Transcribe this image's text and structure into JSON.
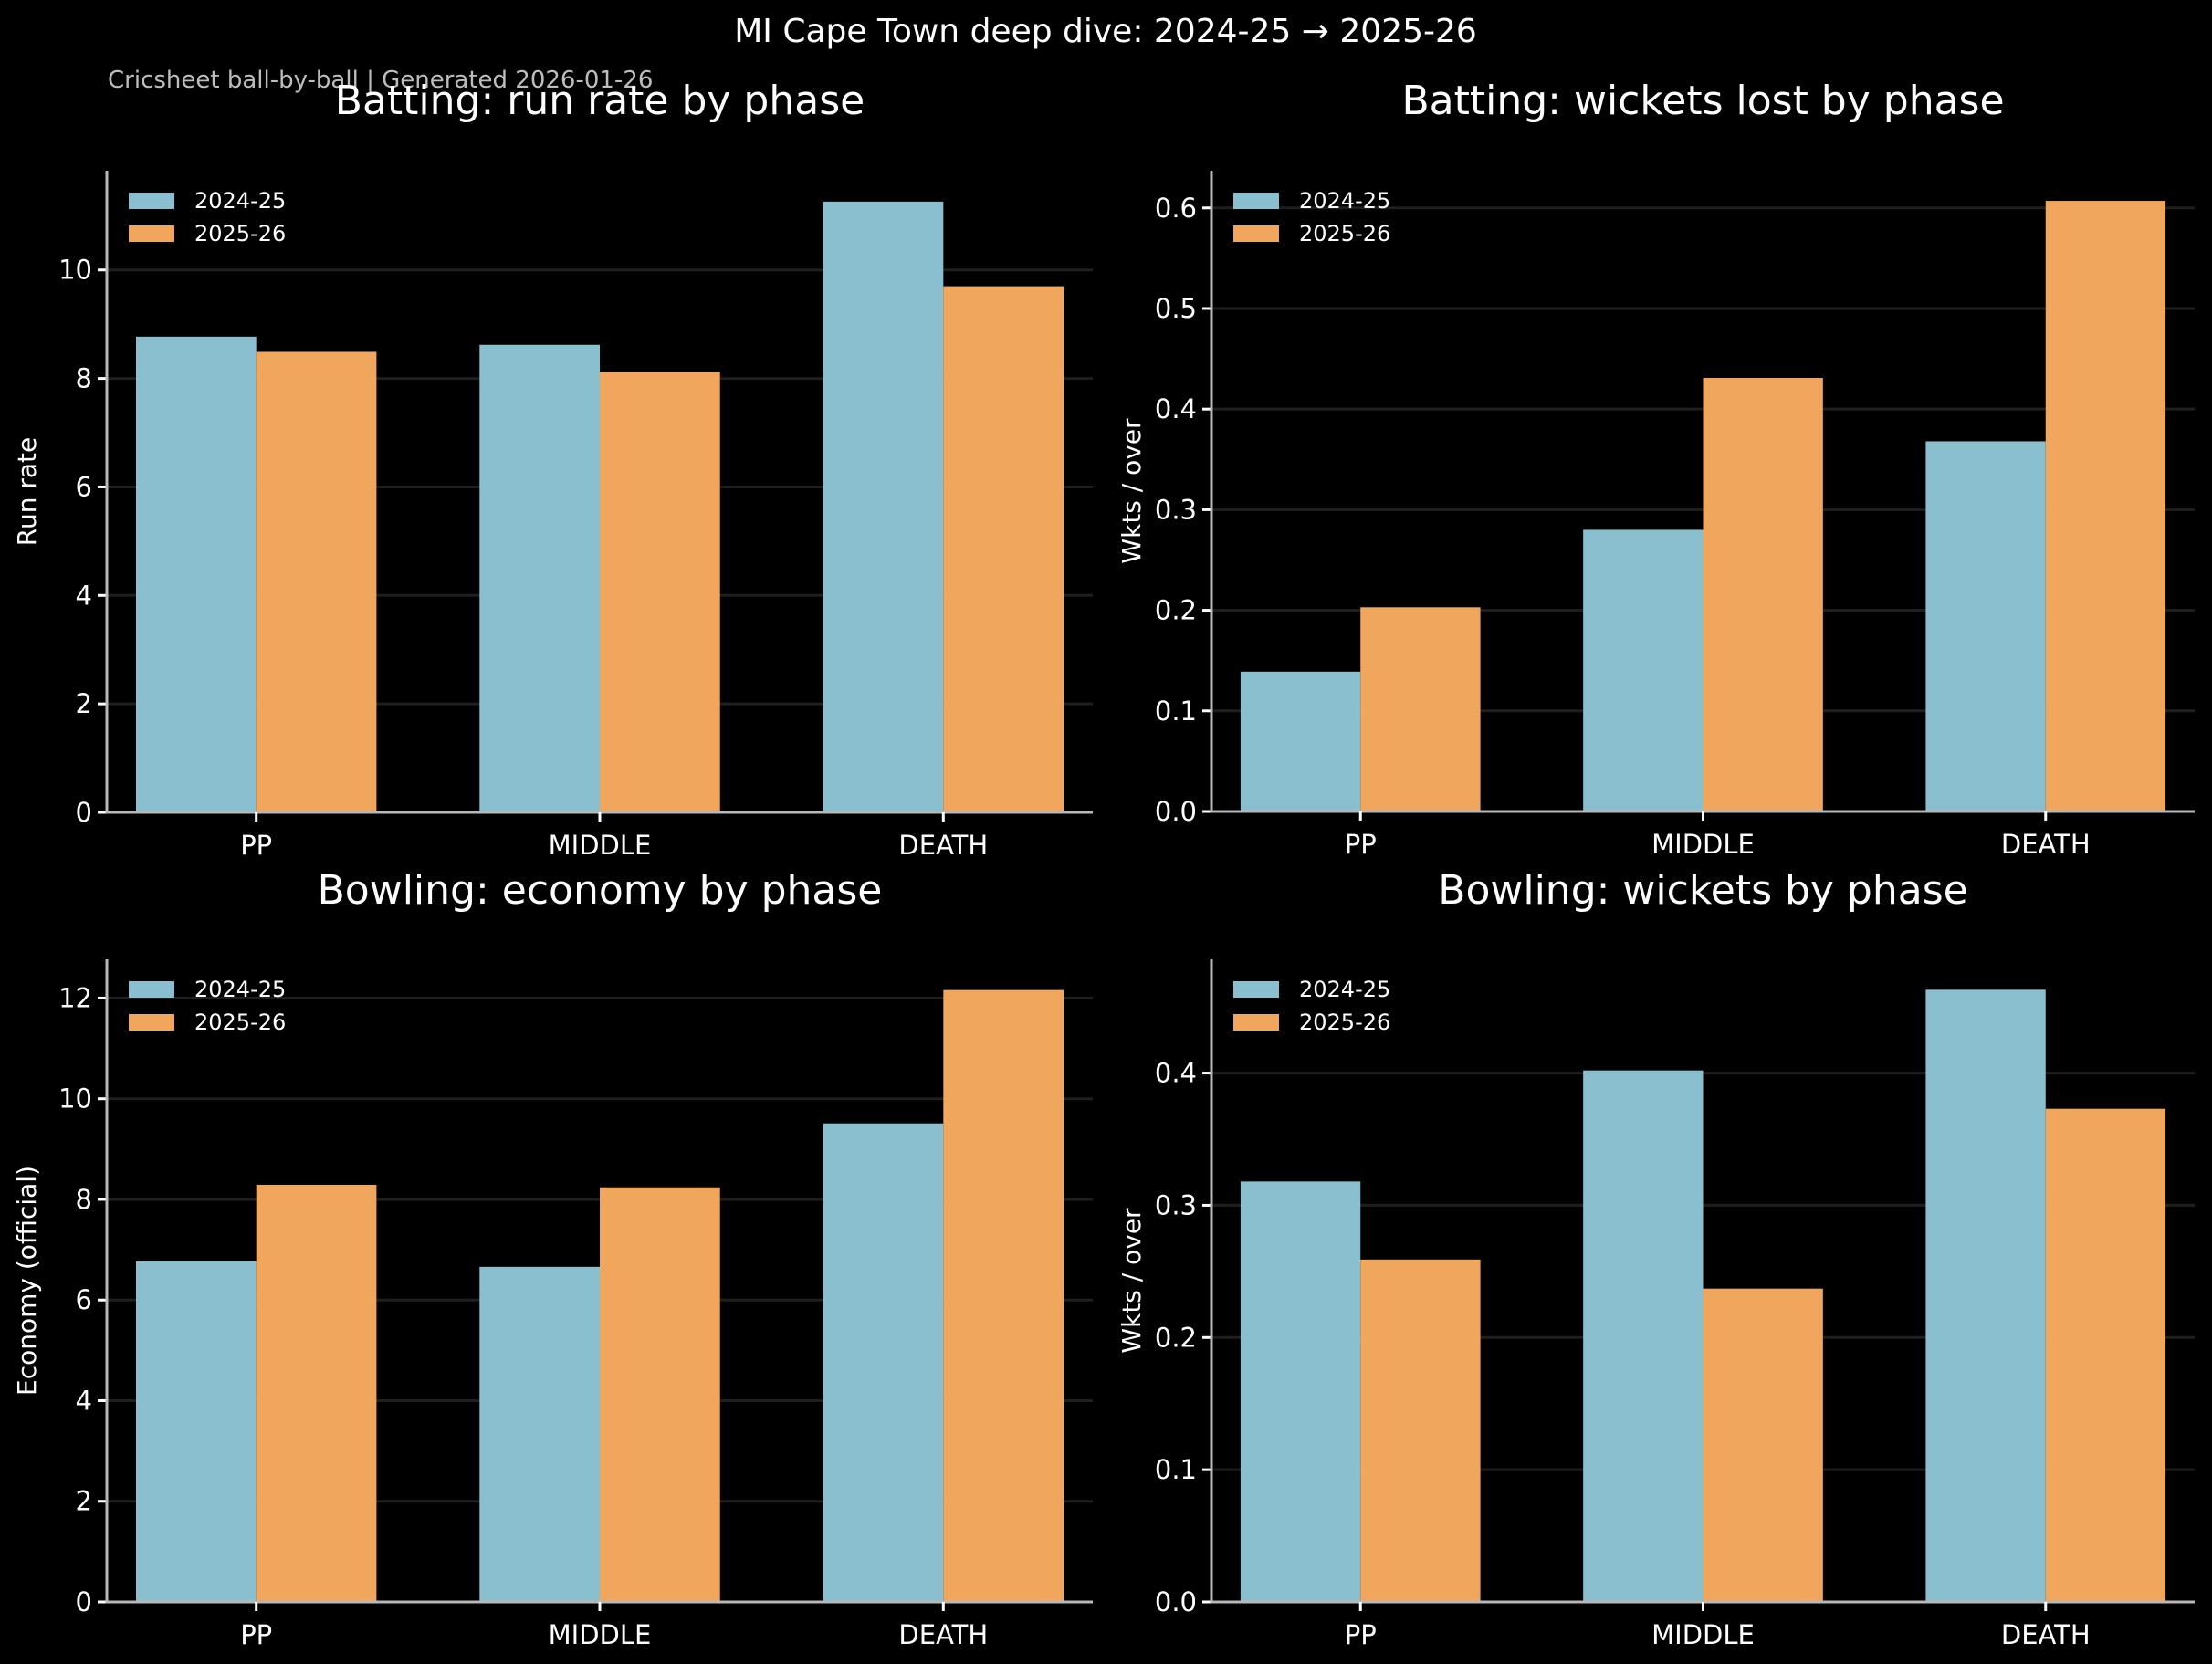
{
  "figure": {
    "title": "MI Cape Town deep dive: 2024-25 → 2025-26",
    "subtitle": "Cricsheet ball-by-ball | Generated 2026-01-26",
    "background": "#000000"
  },
  "colors": {
    "2024-25": "#89bfce",
    "2025-26": "#f0a65c"
  },
  "chart_data": [
    {
      "type": "bar",
      "panel": "top-left",
      "title": "Batting: run rate by phase",
      "xlabel": "",
      "ylabel": "Run rate",
      "categories": [
        "PP",
        "MIDDLE",
        "DEATH"
      ],
      "series": [
        {
          "name": "2024-25",
          "values": [
            8.77,
            8.62,
            11.26
          ]
        },
        {
          "name": "2025-26",
          "values": [
            8.49,
            8.12,
            9.7
          ]
        }
      ],
      "ylim": [
        0,
        11.83
      ],
      "yticks": [
        0,
        2,
        4,
        6,
        8,
        10
      ],
      "ytick_labels": [
        "0",
        "2",
        "4",
        "6",
        "8",
        "10"
      ],
      "grid": "y",
      "legend": "top-left"
    },
    {
      "type": "bar",
      "panel": "top-right",
      "title": "Batting: wickets lost by phase",
      "xlabel": "",
      "ylabel": "Wkts / over",
      "categories": [
        "PP",
        "MIDDLE",
        "DEATH"
      ],
      "series": [
        {
          "name": "2024-25",
          "values": [
            0.139,
            0.28,
            0.368
          ]
        },
        {
          "name": "2025-26",
          "values": [
            0.203,
            0.431,
            0.607
          ]
        }
      ],
      "ylim": [
        0,
        0.637
      ],
      "yticks": [
        0.0,
        0.1,
        0.2,
        0.3,
        0.4,
        0.5,
        0.6
      ],
      "ytick_labels": [
        "0.0",
        "0.1",
        "0.2",
        "0.3",
        "0.4",
        "0.5",
        "0.6"
      ],
      "grid": "y",
      "legend": "top-left"
    },
    {
      "type": "bar",
      "panel": "bottom-left",
      "title": "Bowling: economy by phase",
      "xlabel": "",
      "ylabel": "Economy (official)",
      "categories": [
        "PP",
        "MIDDLE",
        "DEATH"
      ],
      "series": [
        {
          "name": "2024-25",
          "values": [
            6.77,
            6.66,
            9.51
          ]
        },
        {
          "name": "2025-26",
          "values": [
            8.29,
            8.24,
            12.16
          ]
        }
      ],
      "ylim": [
        0,
        12.77
      ],
      "yticks": [
        0,
        2,
        4,
        6,
        8,
        10,
        12
      ],
      "ytick_labels": [
        "0",
        "2",
        "4",
        "6",
        "8",
        "10",
        "12"
      ],
      "grid": "y",
      "legend": "top-left"
    },
    {
      "type": "bar",
      "panel": "bottom-right",
      "title": "Bowling: wickets by phase",
      "xlabel": "",
      "ylabel": "Wkts / over",
      "categories": [
        "PP",
        "MIDDLE",
        "DEATH"
      ],
      "series": [
        {
          "name": "2024-25",
          "values": [
            0.318,
            0.402,
            0.463
          ]
        },
        {
          "name": "2025-26",
          "values": [
            0.259,
            0.237,
            0.373
          ]
        }
      ],
      "ylim": [
        0,
        0.486
      ],
      "yticks": [
        0.0,
        0.1,
        0.2,
        0.3,
        0.4
      ],
      "ytick_labels": [
        "0.0",
        "0.1",
        "0.2",
        "0.3",
        "0.4"
      ],
      "grid": "y",
      "legend": "top-left"
    }
  ]
}
